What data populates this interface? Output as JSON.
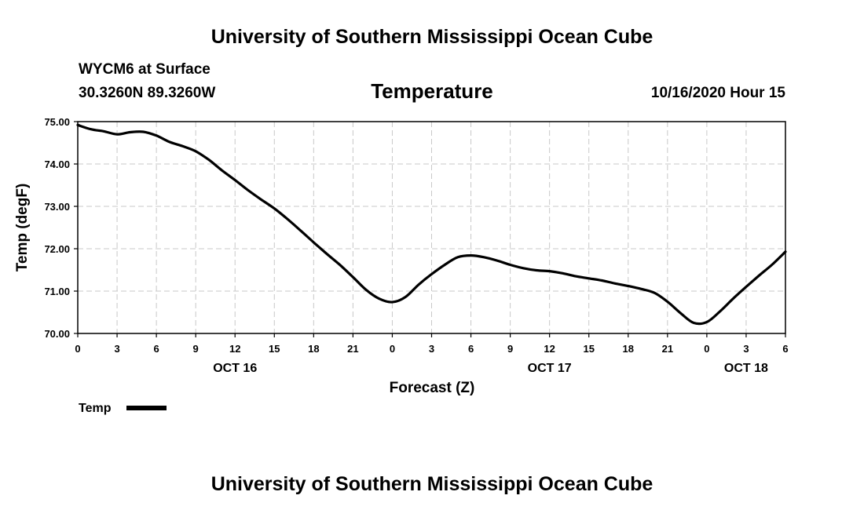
{
  "header": {
    "title": "University of Southern Mississippi Ocean Cube",
    "station": "WYCM6 at Surface",
    "location": "30.3260N 89.3260W",
    "datetime": "10/16/2020 Hour 15"
  },
  "footer": {
    "title": "University of Southern Mississippi Ocean Cube"
  },
  "chart_data": {
    "type": "line",
    "title": "Temperature",
    "xlabel": "Forecast (Z)",
    "ylabel": "Temp (degF)",
    "ylim": [
      70.0,
      75.0
    ],
    "xlim": [
      0,
      54
    ],
    "grid": true,
    "y_ticks": [
      "70.00",
      "71.00",
      "72.00",
      "73.00",
      "74.00",
      "75.00"
    ],
    "y_tick_values": [
      70,
      71,
      72,
      73,
      74,
      75
    ],
    "x_tick_hours": [
      0,
      3,
      6,
      9,
      12,
      15,
      18,
      21,
      24,
      27,
      30,
      33,
      36,
      39,
      42,
      45,
      48,
      51,
      54
    ],
    "x_tick_labels": [
      "0",
      "3",
      "6",
      "9",
      "12",
      "15",
      "18",
      "21",
      "0",
      "3",
      "6",
      "9",
      "12",
      "15",
      "18",
      "21",
      "0",
      "3",
      "6"
    ],
    "date_labels": [
      {
        "hour": 12,
        "text": "OCT 16"
      },
      {
        "hour": 36,
        "text": "OCT 17"
      },
      {
        "hour": 51,
        "text": "OCT 18"
      }
    ],
    "legend": {
      "label": "Temp",
      "placement": "bottom-left"
    },
    "series": [
      {
        "name": "Temp",
        "color": "#000000",
        "x": [
          0,
          1,
          2,
          3,
          4,
          5,
          6,
          7,
          8,
          9,
          10,
          11,
          12,
          13,
          14,
          15,
          16,
          17,
          18,
          19,
          20,
          21,
          22,
          23,
          24,
          25,
          26,
          27,
          28,
          29,
          30,
          31,
          32,
          33,
          34,
          35,
          36,
          37,
          38,
          39,
          40,
          41,
          42,
          43,
          44,
          45,
          46,
          47,
          48,
          49,
          50,
          51,
          52,
          53,
          54
        ],
        "values": [
          74.92,
          74.82,
          74.77,
          74.7,
          74.75,
          74.76,
          74.67,
          74.52,
          74.42,
          74.3,
          74.1,
          73.85,
          73.62,
          73.38,
          73.16,
          72.95,
          72.7,
          72.43,
          72.15,
          71.88,
          71.62,
          71.33,
          71.03,
          70.82,
          70.74,
          70.86,
          71.15,
          71.4,
          71.62,
          71.8,
          71.84,
          71.8,
          71.72,
          71.62,
          71.54,
          71.49,
          71.47,
          71.42,
          71.35,
          71.3,
          71.25,
          71.18,
          71.12,
          71.05,
          70.96,
          70.75,
          70.48,
          70.25,
          70.27,
          70.52,
          70.82,
          71.1,
          71.37,
          71.63,
          71.93
        ]
      }
    ]
  }
}
